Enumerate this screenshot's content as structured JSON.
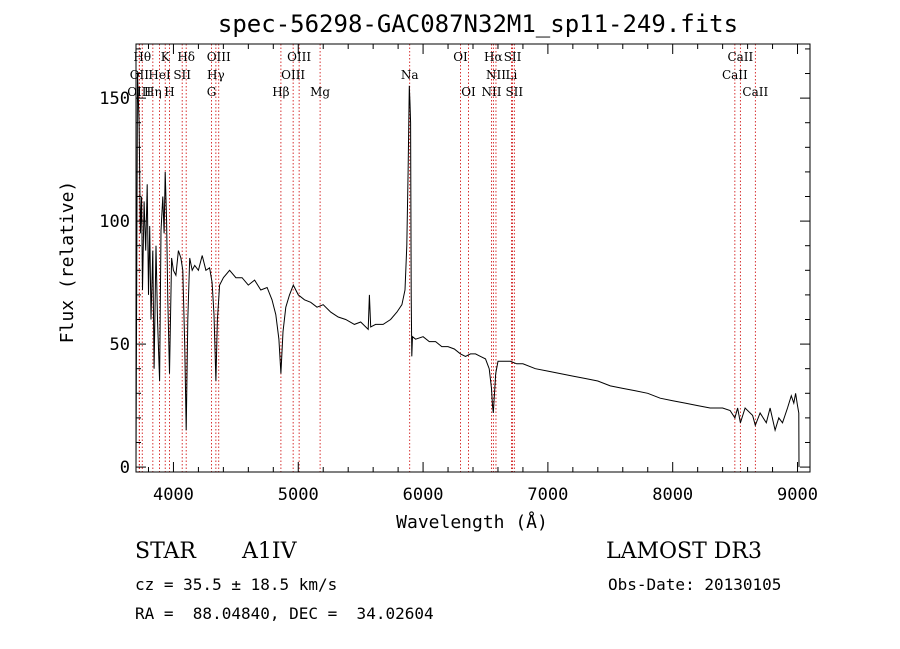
{
  "chart_data": {
    "type": "line",
    "title": "spec-56298-GAC087N32M1_sp11-249.fits",
    "xlabel": "Wavelength (Å)",
    "ylabel": "Flux (relative)",
    "xlim": [
      3700,
      9100
    ],
    "ylim": [
      -2,
      172
    ],
    "x_ticks": [
      4000,
      5000,
      6000,
      7000,
      8000,
      9000
    ],
    "y_ticks": [
      0,
      50,
      100,
      150
    ],
    "grid": false,
    "spectral_lines": [
      {
        "label": "Hθ",
        "wavelength": 3750,
        "row": 0
      },
      {
        "label": "K",
        "wavelength": 3934,
        "row": 0
      },
      {
        "label": "Hδ",
        "wavelength": 4102,
        "row": 0
      },
      {
        "label": "OIII",
        "wavelength": 4363,
        "row": 0
      },
      {
        "label": "OIII",
        "wavelength": 5007,
        "row": 0
      },
      {
        "label": "OI",
        "wavelength": 6300,
        "row": 0
      },
      {
        "label": "Hα",
        "wavelength": 6563,
        "row": 0
      },
      {
        "label": "SII",
        "wavelength": 6717,
        "row": 0
      },
      {
        "label": "CaII",
        "wavelength": 8542,
        "row": 0
      },
      {
        "label": "OII",
        "wavelength": 3727,
        "row": 1
      },
      {
        "label": "HeI",
        "wavelength": 3889,
        "row": 1
      },
      {
        "label": "SII",
        "wavelength": 4070,
        "row": 1
      },
      {
        "label": "Hγ",
        "wavelength": 4340,
        "row": 1
      },
      {
        "label": "OIII",
        "wavelength": 4959,
        "row": 1
      },
      {
        "label": "Na",
        "wavelength": 5893,
        "row": 1
      },
      {
        "label": "NII",
        "wavelength": 6584,
        "row": 1
      },
      {
        "label": "Li",
        "wavelength": 6708,
        "row": 1
      },
      {
        "label": "CaII",
        "wavelength": 8498,
        "row": 1
      },
      {
        "label": "OIII",
        "wavelength": 3726,
        "row": 2
      },
      {
        "label": "Hη",
        "wavelength": 3835,
        "row": 2
      },
      {
        "label": "H",
        "wavelength": 3968,
        "row": 2
      },
      {
        "label": "G",
        "wavelength": 4305,
        "row": 2
      },
      {
        "label": "Hβ",
        "wavelength": 4861,
        "row": 2
      },
      {
        "label": "Mg",
        "wavelength": 5175,
        "row": 2
      },
      {
        "label": "OI",
        "wavelength": 6364,
        "row": 2
      },
      {
        "label": "NII",
        "wavelength": 6548,
        "row": 2
      },
      {
        "label": "SII",
        "wavelength": 6731,
        "row": 2
      },
      {
        "label": "CaII",
        "wavelength": 8662,
        "row": 2
      }
    ],
    "series": [
      {
        "name": "flux",
        "points": [
          [
            3700,
            0
          ],
          [
            3712,
            160
          ],
          [
            3725,
            140
          ],
          [
            3735,
            95
          ],
          [
            3745,
            110
          ],
          [
            3752,
            72
          ],
          [
            3765,
            108
          ],
          [
            3778,
            88
          ],
          [
            3790,
            115
          ],
          [
            3800,
            70
          ],
          [
            3810,
            98
          ],
          [
            3820,
            60
          ],
          [
            3835,
            88
          ],
          [
            3845,
            40
          ],
          [
            3860,
            90
          ],
          [
            3872,
            60
          ],
          [
            3889,
            35
          ],
          [
            3900,
            96
          ],
          [
            3915,
            110
          ],
          [
            3925,
            95
          ],
          [
            3934,
            120
          ],
          [
            3945,
            100
          ],
          [
            3955,
            68
          ],
          [
            3968,
            38
          ],
          [
            3985,
            85
          ],
          [
            4000,
            80
          ],
          [
            4020,
            78
          ],
          [
            4040,
            88
          ],
          [
            4060,
            85
          ],
          [
            4075,
            80
          ],
          [
            4090,
            50
          ],
          [
            4102,
            15
          ],
          [
            4115,
            60
          ],
          [
            4130,
            85
          ],
          [
            4150,
            80
          ],
          [
            4170,
            82
          ],
          [
            4200,
            80
          ],
          [
            4230,
            86
          ],
          [
            4260,
            80
          ],
          [
            4290,
            81
          ],
          [
            4310,
            75
          ],
          [
            4325,
            62
          ],
          [
            4340,
            35
          ],
          [
            4352,
            60
          ],
          [
            4370,
            74
          ],
          [
            4400,
            77
          ],
          [
            4450,
            80
          ],
          [
            4500,
            77
          ],
          [
            4550,
            77
          ],
          [
            4600,
            74
          ],
          [
            4650,
            76
          ],
          [
            4700,
            72
          ],
          [
            4750,
            73
          ],
          [
            4790,
            68
          ],
          [
            4820,
            62
          ],
          [
            4845,
            52
          ],
          [
            4861,
            38
          ],
          [
            4878,
            55
          ],
          [
            4900,
            65
          ],
          [
            4930,
            70
          ],
          [
            4960,
            74
          ],
          [
            5000,
            70
          ],
          [
            5050,
            68
          ],
          [
            5100,
            67
          ],
          [
            5150,
            65
          ],
          [
            5200,
            66
          ],
          [
            5260,
            63
          ],
          [
            5320,
            61
          ],
          [
            5380,
            60
          ],
          [
            5450,
            58
          ],
          [
            5500,
            59
          ],
          [
            5560,
            56
          ],
          [
            5570,
            70
          ],
          [
            5580,
            57
          ],
          [
            5620,
            58
          ],
          [
            5680,
            58
          ],
          [
            5740,
            60
          ],
          [
            5790,
            63
          ],
          [
            5830,
            66
          ],
          [
            5855,
            72
          ],
          [
            5870,
            90
          ],
          [
            5880,
            120
          ],
          [
            5890,
            155
          ],
          [
            5895,
            148
          ],
          [
            5900,
            140
          ],
          [
            5905,
            70
          ],
          [
            5910,
            45
          ],
          [
            5915,
            53
          ],
          [
            5940,
            52
          ],
          [
            6000,
            53
          ],
          [
            6050,
            51
          ],
          [
            6100,
            51
          ],
          [
            6150,
            49
          ],
          [
            6200,
            49
          ],
          [
            6250,
            48
          ],
          [
            6300,
            46
          ],
          [
            6340,
            45
          ],
          [
            6380,
            46
          ],
          [
            6420,
            46
          ],
          [
            6460,
            45
          ],
          [
            6500,
            44
          ],
          [
            6530,
            40
          ],
          [
            6548,
            32
          ],
          [
            6556,
            25
          ],
          [
            6563,
            22
          ],
          [
            6570,
            28
          ],
          [
            6582,
            38
          ],
          [
            6600,
            43
          ],
          [
            6650,
            43
          ],
          [
            6700,
            43
          ],
          [
            6750,
            42
          ],
          [
            6800,
            42
          ],
          [
            6900,
            40
          ],
          [
            7000,
            39
          ],
          [
            7100,
            38
          ],
          [
            7200,
            37
          ],
          [
            7300,
            36
          ],
          [
            7400,
            35
          ],
          [
            7500,
            33
          ],
          [
            7600,
            32
          ],
          [
            7700,
            31
          ],
          [
            7800,
            30
          ],
          [
            7900,
            28
          ],
          [
            8000,
            27
          ],
          [
            8100,
            26
          ],
          [
            8200,
            25
          ],
          [
            8300,
            24
          ],
          [
            8400,
            24
          ],
          [
            8460,
            23
          ],
          [
            8498,
            20
          ],
          [
            8520,
            24
          ],
          [
            8542,
            18
          ],
          [
            8580,
            24
          ],
          [
            8640,
            21
          ],
          [
            8662,
            17
          ],
          [
            8700,
            22
          ],
          [
            8750,
            18
          ],
          [
            8780,
            24
          ],
          [
            8820,
            15
          ],
          [
            8850,
            20
          ],
          [
            8880,
            18
          ],
          [
            8920,
            24
          ],
          [
            8950,
            29
          ],
          [
            8970,
            26
          ],
          [
            8985,
            30
          ],
          [
            9000,
            25
          ],
          [
            9010,
            22
          ],
          [
            9012,
            0
          ]
        ]
      }
    ]
  },
  "info": {
    "object_class": "STAR",
    "subclass": "A1IV",
    "cz": "cz = 35.5 ± 18.5 km/s",
    "coords": "RA =  88.04840, DEC =  34.02604",
    "survey": "LAMOST DR3",
    "obs_date": "Obs-Date: 20130105"
  },
  "colors": {
    "axis": "#000000",
    "spectrum": "#000000",
    "line_marker": "#cc0000"
  }
}
